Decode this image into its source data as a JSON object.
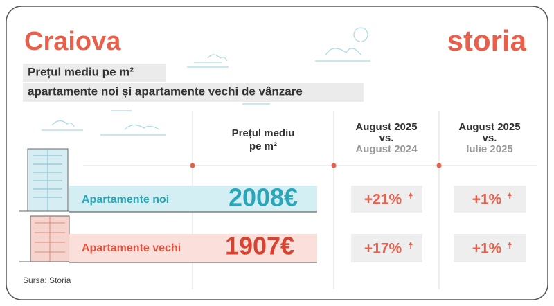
{
  "header": {
    "title": "Craiova",
    "logo": "storia",
    "subtitle": [
      "Prețul mediu pe m²",
      "apartamente noi și apartamente vechi de vânzare"
    ]
  },
  "table": {
    "columns": [
      {
        "lines": [
          "Prețul mediu",
          "pe m²"
        ]
      },
      {
        "lines": [
          "August 2025",
          "vs.",
          "August 2024"
        ]
      },
      {
        "lines": [
          "August 2025",
          "vs.",
          "Iulie 2025"
        ]
      }
    ],
    "rows": [
      [
        "Apartamente noi",
        "2008€",
        "+21%",
        "+1%"
      ],
      [
        "Apartamente vechi",
        "1907€",
        "+17%",
        "+1%"
      ]
    ]
  },
  "footer": {
    "source": "Sursa: Storia"
  }
}
